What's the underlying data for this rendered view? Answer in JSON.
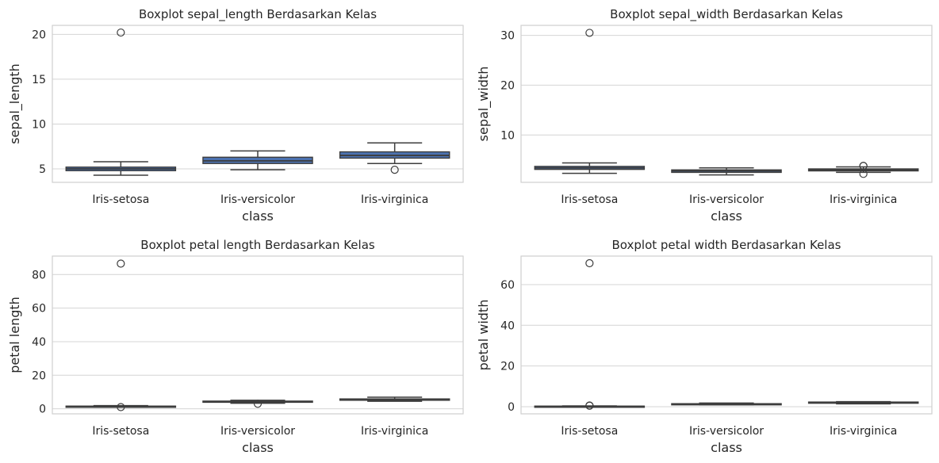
{
  "chart_data": [
    {
      "type": "boxplot",
      "title": "Boxplot sepal_length Berdasarkan Kelas",
      "xlabel": "class",
      "ylabel": "sepal_length",
      "categories": [
        "Iris-setosa",
        "Iris-versicolor",
        "Iris-virginica"
      ],
      "ylim": [
        3.5,
        21
      ],
      "yticks": [
        5,
        10,
        15,
        20
      ],
      "grid": true,
      "box_color": "#4c72b0",
      "boxes": [
        {
          "whislo": 4.3,
          "q1": 4.8,
          "med": 5.0,
          "q3": 5.2,
          "whishi": 5.8,
          "fliers": [
            20.2
          ]
        },
        {
          "whislo": 4.9,
          "q1": 5.6,
          "med": 5.9,
          "q3": 6.3,
          "whishi": 7.0,
          "fliers": []
        },
        {
          "whislo": 5.6,
          "q1": 6.2,
          "med": 6.5,
          "q3": 6.9,
          "whishi": 7.9,
          "fliers": [
            4.9
          ]
        }
      ]
    },
    {
      "type": "boxplot",
      "title": "Boxplot sepal_width Berdasarkan Kelas",
      "xlabel": "class",
      "ylabel": "sepal_width",
      "categories": [
        "Iris-setosa",
        "Iris-versicolor",
        "Iris-virginica"
      ],
      "ylim": [
        0.5,
        32
      ],
      "yticks": [
        10,
        20,
        30
      ],
      "grid": true,
      "box_color": "#4c72b0",
      "boxes": [
        {
          "whislo": 2.3,
          "q1": 3.1,
          "med": 3.4,
          "q3": 3.7,
          "whishi": 4.4,
          "fliers": [
            30.5
          ]
        },
        {
          "whislo": 2.0,
          "q1": 2.5,
          "med": 2.8,
          "q3": 3.0,
          "whishi": 3.4,
          "fliers": []
        },
        {
          "whislo": 2.5,
          "q1": 2.8,
          "med": 3.0,
          "q3": 3.2,
          "whishi": 3.6,
          "fliers": [
            3.8,
            3.8,
            2.2
          ]
        }
      ]
    },
    {
      "type": "boxplot",
      "title": "Boxplot petal length Berdasarkan Kelas",
      "xlabel": "class",
      "ylabel": "petal length",
      "categories": [
        "Iris-setosa",
        "Iris-versicolor",
        "Iris-virginica"
      ],
      "ylim": [
        -3,
        91
      ],
      "yticks": [
        0,
        20,
        40,
        60,
        80
      ],
      "grid": true,
      "box_color": "#4c72b0",
      "boxes": [
        {
          "whislo": 1.0,
          "q1": 1.4,
          "med": 1.5,
          "q3": 1.6,
          "whishi": 1.9,
          "fliers": [
            86.5,
            1.0
          ]
        },
        {
          "whislo": 3.3,
          "q1": 4.0,
          "med": 4.35,
          "q3": 4.6,
          "whishi": 5.1,
          "fliers": [
            3.0
          ]
        },
        {
          "whislo": 4.5,
          "q1": 5.1,
          "med": 5.55,
          "q3": 5.9,
          "whishi": 6.9,
          "fliers": []
        }
      ]
    },
    {
      "type": "boxplot",
      "title": "Boxplot petal width Berdasarkan Kelas",
      "xlabel": "class",
      "ylabel": "petal width",
      "categories": [
        "Iris-setosa",
        "Iris-versicolor",
        "Iris-virginica"
      ],
      "ylim": [
        -3.5,
        74
      ],
      "yticks": [
        0,
        20,
        40,
        60
      ],
      "grid": true,
      "box_color": "#4c72b0",
      "boxes": [
        {
          "whislo": 0.1,
          "q1": 0.2,
          "med": 0.2,
          "q3": 0.3,
          "whishi": 0.4,
          "fliers": [
            70.5,
            0.6,
            0.5
          ]
        },
        {
          "whislo": 1.0,
          "q1": 1.2,
          "med": 1.3,
          "q3": 1.5,
          "whishi": 1.8,
          "fliers": []
        },
        {
          "whislo": 1.4,
          "q1": 1.8,
          "med": 2.0,
          "q3": 2.3,
          "whishi": 2.5,
          "fliers": []
        }
      ]
    }
  ]
}
